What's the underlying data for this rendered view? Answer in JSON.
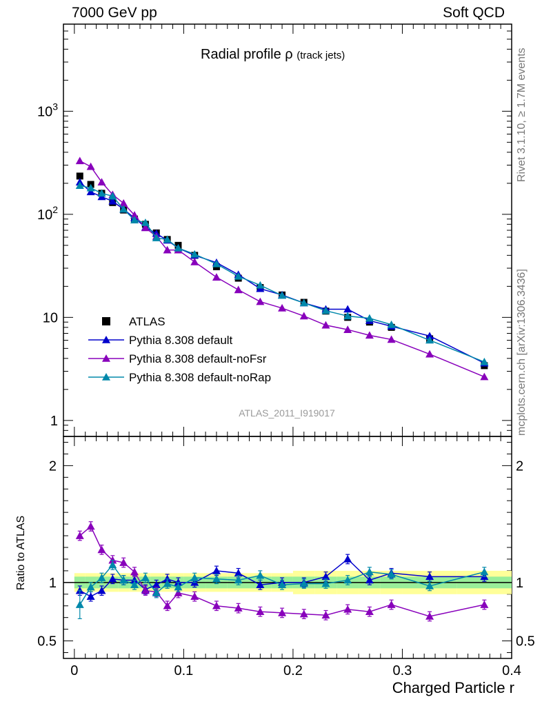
{
  "header": {
    "left": "7000 GeV pp",
    "right": "Soft QCD"
  },
  "side": {
    "rivet": "Rivet 3.1.10, ≥ 1.7M events",
    "mcplots": "mcplots.cern.ch [arXiv:1306.3436]"
  },
  "watermark": "ATLAS_2011_I919017",
  "colors": {
    "data": "#000000",
    "default": "#0000cc",
    "noFsr": "#8800bb",
    "noRap": "#0088aa",
    "band_outer": "#ffff99",
    "band_inner": "#99ee99"
  },
  "chart_data": [
    {
      "type": "line",
      "title": "Radial profile ρ",
      "title_suffix": "(track jets)",
      "xlabel": "Charged Particle r",
      "ylabel": "",
      "yscale": "log",
      "xlim": [
        -0.01,
        0.4
      ],
      "ylim": [
        0.7,
        7000
      ],
      "y_tick_labels": [
        "1",
        "10",
        "10²",
        "10³"
      ],
      "legend_placement": "middle-left",
      "x": [
        0.005,
        0.015,
        0.025,
        0.035,
        0.045,
        0.055,
        0.065,
        0.075,
        0.085,
        0.095,
        0.11,
        0.13,
        0.15,
        0.17,
        0.19,
        0.21,
        0.23,
        0.25,
        0.27,
        0.29,
        0.325,
        0.375
      ],
      "series": [
        {
          "name": "ATLAS",
          "marker": "square",
          "values": [
            235,
            195,
            160,
            130,
            110,
            90,
            80,
            66,
            57,
            50,
            40,
            31,
            24,
            19.5,
            16.5,
            14,
            11.5,
            10,
            9,
            8,
            6.2,
            3.4
          ]
        },
        {
          "name": "Pythia 8.308 default",
          "marker": "triangle",
          "values": [
            205,
            165,
            148,
            134,
            112,
            92,
            75,
            65,
            56,
            47,
            40,
            34,
            26,
            19,
            16.5,
            13.8,
            12,
            12,
            9.3,
            8.2,
            6.6,
            3.6
          ]
        },
        {
          "name": "Pythia 8.308 default-noFsr",
          "marker": "triangle",
          "values": [
            330,
            290,
            205,
            155,
            128,
            98,
            74,
            61,
            45,
            45,
            34.5,
            24.5,
            18.5,
            14.2,
            12.3,
            10.3,
            8.4,
            7.6,
            6.7,
            6.1,
            4.4,
            2.65
          ]
        },
        {
          "name": "Pythia 8.308 default-noRap",
          "marker": "triangle",
          "values": [
            190,
            180,
            160,
            150,
            112,
            88,
            83,
            59,
            57,
            47,
            41,
            33,
            25,
            20.5,
            16.3,
            13.8,
            11.6,
            10.3,
            9.8,
            8.5,
            6,
            3.7
          ]
        }
      ]
    },
    {
      "type": "line",
      "title": "",
      "xlabel": "Charged Particle r",
      "ylabel": "Ratio to ATLAS",
      "xlim": [
        -0.01,
        0.4
      ],
      "ylim": [
        0.35,
        2.25
      ],
      "x_tick_labels": [
        "0",
        "0.1",
        "0.2",
        "0.3",
        "0.4"
      ],
      "y_tick_labels": [
        "0.5",
        "1",
        "2"
      ],
      "reference_line": 1,
      "x": [
        0.005,
        0.015,
        0.025,
        0.035,
        0.045,
        0.055,
        0.065,
        0.075,
        0.085,
        0.095,
        0.11,
        0.13,
        0.15,
        0.17,
        0.19,
        0.21,
        0.23,
        0.25,
        0.27,
        0.29,
        0.325,
        0.375
      ],
      "series": [
        {
          "name": "Pythia 8.308 default",
          "values": [
            0.93,
            0.88,
            0.93,
            1.03,
            1.02,
            1.02,
            0.94,
            0.98,
            1.03,
            1.0,
            1.0,
            1.1,
            1.08,
            0.98,
            1.0,
            1.0,
            1.05,
            1.2,
            1.02,
            1.08,
            1.05,
            1.05
          ]
        },
        {
          "name": "Pythia 8.308 default-noFsr",
          "values": [
            1.4,
            1.48,
            1.28,
            1.19,
            1.17,
            1.09,
            0.93,
            0.92,
            0.8,
            0.91,
            0.88,
            0.8,
            0.78,
            0.75,
            0.74,
            0.73,
            0.72,
            0.77,
            0.75,
            0.81,
            0.71,
            0.81
          ]
        },
        {
          "name": "Pythia 8.308 default-noRap",
          "values": [
            0.81,
            0.96,
            1.04,
            1.15,
            1.02,
            0.98,
            1.04,
            0.91,
            0.99,
            0.96,
            1.04,
            1.03,
            1.02,
            1.06,
            0.98,
            0.99,
            0.99,
            1.02,
            1.09,
            1.07,
            0.97,
            1.09
          ]
        }
      ],
      "band_inner_halfwidth": 0.05,
      "band_outer_halfwidth": 0.08
    }
  ]
}
